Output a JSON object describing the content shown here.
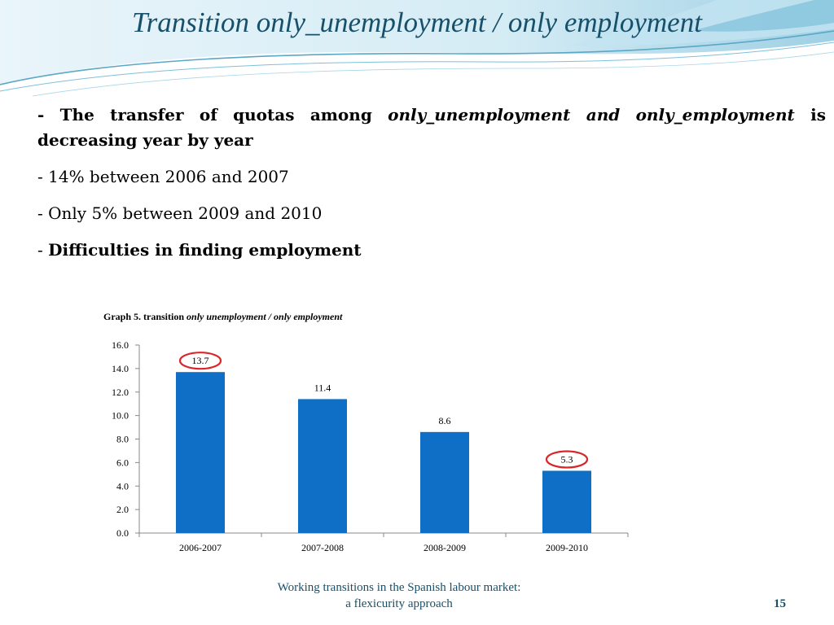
{
  "slide": {
    "title": "Transition only_unemployment / only employment",
    "bullets": [
      {
        "lead": "- The transfer of quotas among ",
        "emph": "only_unemployment and only_employment",
        "tail": " is decreasing year by year"
      },
      {
        "text": "- 14% between 2006 and 2007"
      },
      {
        "text": "- Only 5% between 2009 and 2010"
      },
      {
        "prefix": "- ",
        "strong": "Difficulties in finding employment"
      }
    ],
    "footer": {
      "line1": "Working transitions in the Spanish labour market:",
      "line2": "a flexicurity approach"
    },
    "page_number": "15"
  },
  "chart_caption": {
    "prefix": "Graph 5. transition ",
    "emph": "only unemployment /  only employment"
  },
  "colors": {
    "bar": "#0f6fc6",
    "highlight_ring": "#d9262a",
    "title": "#17506a",
    "wave": "#5aa7c6"
  },
  "chart_data": {
    "type": "bar",
    "title": "",
    "xlabel": "",
    "ylabel": "",
    "categories": [
      "2006-2007",
      "2007-2008",
      "2008-2009",
      "2009-2010"
    ],
    "values": [
      13.7,
      11.4,
      8.6,
      5.3
    ],
    "value_labels": [
      "13.7",
      "11.4",
      "8.6",
      "5.3"
    ],
    "highlighted": [
      "2006-2007",
      "2009-2010"
    ],
    "ylim": [
      0,
      16
    ],
    "yticks": [
      0,
      2,
      4,
      6,
      8,
      10,
      12,
      14,
      16
    ],
    "ytick_labels": [
      "0.0",
      "2.0",
      "4.0",
      "6.0",
      "8.0",
      "10.0",
      "12.0",
      "14.0",
      "16.0"
    ],
    "grid": false,
    "legend": "none"
  }
}
